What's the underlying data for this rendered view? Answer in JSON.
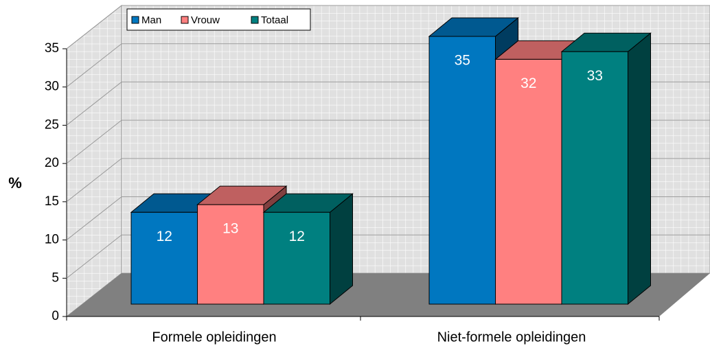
{
  "chart_data": {
    "type": "bar3d",
    "y_label": "%",
    "categories": [
      "Formele opleidingen",
      "Niet-formele opleidingen"
    ],
    "series": [
      {
        "name": "Man",
        "color": "#0077c0",
        "values": [
          12,
          35
        ]
      },
      {
        "name": "Vrouw",
        "color": "#ff8080",
        "values": [
          13,
          32
        ]
      },
      {
        "name": "Totaal",
        "color": "#008080",
        "values": [
          12,
          33
        ]
      }
    ],
    "ylim": [
      0,
      35
    ],
    "yticks": [
      0,
      5,
      10,
      15,
      20,
      25,
      30,
      35
    ],
    "grid": true,
    "legend": "top"
  }
}
